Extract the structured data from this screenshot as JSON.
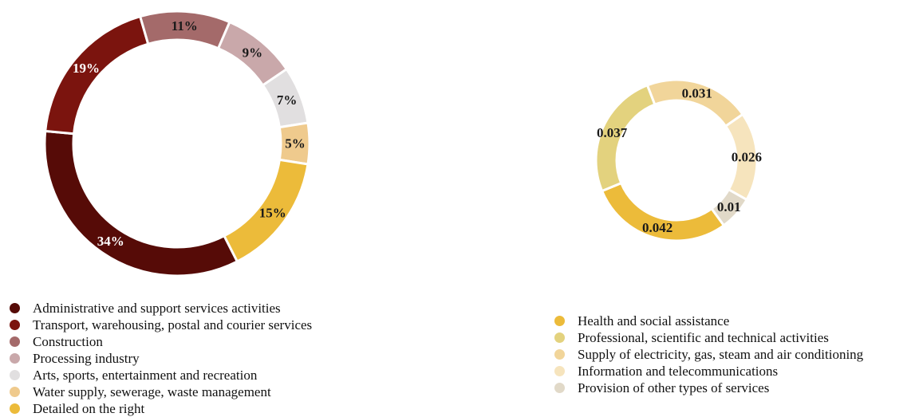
{
  "chart_data": [
    {
      "type": "pie",
      "donut": true,
      "slices": [
        {
          "label": "Administrative and support services activities",
          "value": 34,
          "display": "34%",
          "color": "#560b07",
          "label_color": "#ffffff"
        },
        {
          "label": "Transport, warehousing, postal and courier services",
          "value": 19,
          "display": "19%",
          "color": "#7b140e",
          "label_color": "#ffffff"
        },
        {
          "label": "Construction",
          "value": 11,
          "display": "11%",
          "color": "#a46a6a",
          "label_color": "#1a1a1a"
        },
        {
          "label": "Processing industry",
          "value": 9,
          "display": "9%",
          "color": "#c9a8aa",
          "label_color": "#1a1a1a"
        },
        {
          "label": "Arts, sports, entertainment and recreation",
          "value": 7,
          "display": "7%",
          "color": "#e1dfe0",
          "label_color": "#1a1a1a"
        },
        {
          "label": "Water supply, sewerage, waste management",
          "value": 5,
          "display": "5%",
          "color": "#efca8d",
          "label_color": "#1a1a1a"
        },
        {
          "label": "Detailed on the right",
          "value": 15,
          "display": "15%",
          "color": "#ecbb3a",
          "label_color": "#1a1a1a"
        }
      ],
      "legend_position": "bottom"
    },
    {
      "type": "pie",
      "donut": true,
      "slices": [
        {
          "label": "Health and social assistance",
          "value": 0.042,
          "display": "0.042",
          "color": "#ecbb3a",
          "label_color": "#1a1a1a"
        },
        {
          "label": "Professional, scientific and technical activities",
          "value": 0.037,
          "display": "0.037",
          "color": "#e3d27e",
          "label_color": "#1a1a1a"
        },
        {
          "label": "Supply of electricity, gas, steam and air conditioning",
          "value": 0.031,
          "display": "0.031",
          "color": "#f1d59a",
          "label_color": "#1a1a1a"
        },
        {
          "label": "Information and telecommunications",
          "value": 0.026,
          "display": "0.026",
          "color": "#f6e4bd",
          "label_color": "#1a1a1a"
        },
        {
          "label": "Provision of other types of services",
          "value": 0.01,
          "display": "0.01",
          "color": "#e1d9c8",
          "label_color": "#1a1a1a"
        }
      ],
      "legend_position": "bottom"
    }
  ]
}
